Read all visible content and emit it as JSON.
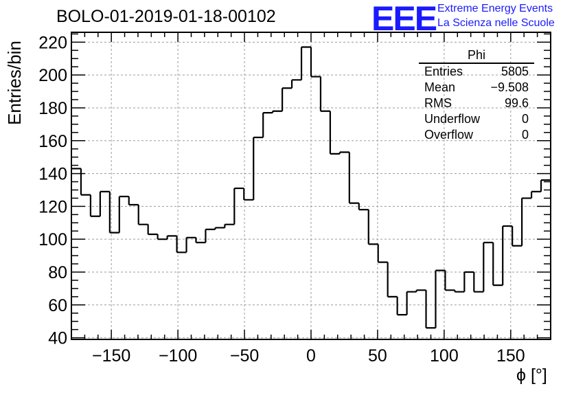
{
  "title": "BOLO-01-2019-01-18-00102",
  "logo": {
    "mark": "EEE",
    "line1": "Extreme Energy Events",
    "line2": "La Scienza nelle Scuole"
  },
  "stats_box": {
    "title": "Phi",
    "rows": [
      {
        "label": "Entries",
        "value": "5805"
      },
      {
        "label": "Mean",
        "value": "−9.508"
      },
      {
        "label": "RMS",
        "value": "99.6"
      },
      {
        "label": "Underflow",
        "value": "0"
      },
      {
        "label": "Overflow",
        "value": "0"
      }
    ]
  },
  "colors": {
    "logo": "#1a1aff",
    "line": "#000000",
    "grid": "#9a9a9a"
  },
  "chart_data": {
    "type": "histogram-step",
    "xlabel": "ϕ [°]",
    "ylabel": "Entries/bin",
    "xlim": [
      -180,
      180
    ],
    "ylim": [
      39,
      226
    ],
    "bin_width": 7.2,
    "bin_edges_start": -180,
    "values": [
      143,
      127,
      114,
      129,
      104,
      126,
      121,
      109,
      103,
      100,
      102,
      92,
      101,
      98,
      106,
      107,
      109,
      131,
      124,
      162,
      177,
      178,
      192,
      197,
      217,
      199,
      178,
      152,
      153,
      122,
      118,
      97,
      86,
      65,
      54,
      68,
      69,
      46,
      81,
      69,
      68,
      80,
      68,
      98,
      72,
      108,
      96,
      125,
      129,
      136
    ],
    "x_ticks": [
      -150,
      -100,
      -50,
      0,
      50,
      100,
      150
    ],
    "x_tick_labels": [
      "−150",
      "−100",
      "−50",
      "0",
      "50",
      "100",
      "150"
    ],
    "y_ticks": [
      40,
      60,
      80,
      100,
      120,
      140,
      160,
      180,
      200,
      220
    ],
    "y_tick_labels": [
      "40",
      "60",
      "80",
      "100",
      "120",
      "140",
      "160",
      "180",
      "200",
      "220"
    ],
    "grid": true
  }
}
